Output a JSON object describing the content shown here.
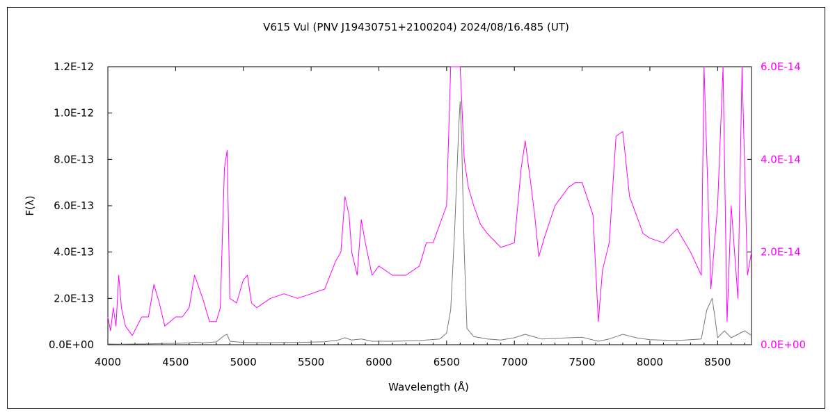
{
  "chart_data": {
    "type": "line",
    "title": "V615 Vul (PNV J19430751+2100204)   2024/08/16.485 (UT)",
    "xlabel": "Wavelength (Å)",
    "ylabel": "F(λ)",
    "xlim": [
      4000,
      8750
    ],
    "ylim_left": [
      0,
      1.2e-12
    ],
    "ylim_right": [
      0,
      6e-14
    ],
    "x_ticks": [
      4000,
      4500,
      5000,
      5500,
      6000,
      6500,
      7000,
      7500,
      8000,
      8500
    ],
    "x_tick_labels": [
      "4000",
      "4500",
      "5000",
      "5500",
      "6000",
      "6500",
      "7000",
      "7500",
      "8000",
      "8500"
    ],
    "y_left_ticks": [
      0,
      2e-13,
      4e-13,
      6e-13,
      8e-13,
      1e-12,
      1.2e-12
    ],
    "y_left_tick_labels": [
      "0.0E+00",
      "2.0E-13",
      "4.0E-13",
      "6.0E-13",
      "8.0E-13",
      "1.0E-12",
      "1.2E-12"
    ],
    "y_right_ticks": [
      0,
      2e-14,
      4e-14,
      6e-14
    ],
    "y_right_tick_labels": [
      "0.0E+00",
      "2.0E-14",
      "4.0E-14",
      "6.0E-14"
    ],
    "colors": {
      "left_series": "#777777",
      "right_series": "#ff00ff",
      "right_axis_labels": "#ff00ff"
    },
    "grid": false,
    "series": [
      {
        "axis": "left",
        "points": [
          [
            4000,
            3e-15
          ],
          [
            4100,
            2e-15
          ],
          [
            4200,
            3e-15
          ],
          [
            4300,
            4e-15
          ],
          [
            4400,
            5e-15
          ],
          [
            4500,
            6e-15
          ],
          [
            4600,
            8e-15
          ],
          [
            4640,
            1.1e-14
          ],
          [
            4700,
            8e-15
          ],
          [
            4800,
            1.2e-14
          ],
          [
            4860,
            4e-14
          ],
          [
            4880,
            4.5e-14
          ],
          [
            4900,
            1.5e-14
          ],
          [
            5000,
            1e-14
          ],
          [
            5100,
            9e-15
          ],
          [
            5200,
            9e-15
          ],
          [
            5300,
            1e-14
          ],
          [
            5400,
            1e-14
          ],
          [
            5500,
            1.1e-14
          ],
          [
            5600,
            1.3e-14
          ],
          [
            5700,
            2e-14
          ],
          [
            5750,
            3e-14
          ],
          [
            5800,
            2e-14
          ],
          [
            5870,
            2.5e-14
          ],
          [
            5950,
            1.5e-14
          ],
          [
            6100,
            1.5e-14
          ],
          [
            6300,
            1.8e-14
          ],
          [
            6450,
            2.5e-14
          ],
          [
            6500,
            5e-14
          ],
          [
            6530,
            1.5e-13
          ],
          [
            6560,
            5e-13
          ],
          [
            6590,
            9.5e-13
          ],
          [
            6600,
            1.05e-12
          ],
          [
            6610,
            9e-13
          ],
          [
            6630,
            4e-13
          ],
          [
            6650,
            7e-14
          ],
          [
            6700,
            3.5e-14
          ],
          [
            6800,
            2.5e-14
          ],
          [
            6900,
            2e-14
          ],
          [
            7000,
            3e-14
          ],
          [
            7080,
            4.5e-14
          ],
          [
            7200,
            2.5e-14
          ],
          [
            7400,
            3e-14
          ],
          [
            7500,
            3.2e-14
          ],
          [
            7620,
            1.5e-14
          ],
          [
            7700,
            2.5e-14
          ],
          [
            7800,
            4.5e-14
          ],
          [
            7900,
            3e-14
          ],
          [
            8000,
            2.2e-14
          ],
          [
            8200,
            1.8e-14
          ],
          [
            8380,
            2.5e-14
          ],
          [
            8420,
            1.5e-13
          ],
          [
            8460,
            2e-13
          ],
          [
            8480,
            1.2e-13
          ],
          [
            8500,
            3e-14
          ],
          [
            8550,
            6e-14
          ],
          [
            8600,
            3e-14
          ],
          [
            8700,
            6e-14
          ],
          [
            8750,
            4e-14
          ]
        ]
      },
      {
        "axis": "right",
        "points": [
          [
            4000,
            6e-15
          ],
          [
            4020,
            3e-15
          ],
          [
            4040,
            8e-15
          ],
          [
            4060,
            4e-15
          ],
          [
            4080,
            1.5e-14
          ],
          [
            4100,
            8e-15
          ],
          [
            4130,
            4e-15
          ],
          [
            4180,
            2e-15
          ],
          [
            4250,
            6e-15
          ],
          [
            4300,
            6e-15
          ],
          [
            4340,
            1.3e-14
          ],
          [
            4380,
            9e-15
          ],
          [
            4420,
            4e-15
          ],
          [
            4500,
            6e-15
          ],
          [
            4550,
            6e-15
          ],
          [
            4600,
            8e-15
          ],
          [
            4640,
            1.5e-14
          ],
          [
            4700,
            1e-14
          ],
          [
            4750,
            5e-15
          ],
          [
            4800,
            5e-15
          ],
          [
            4830,
            8e-15
          ],
          [
            4860,
            3.8e-14
          ],
          [
            4880,
            4.2e-14
          ],
          [
            4900,
            1e-14
          ],
          [
            4950,
            9e-15
          ],
          [
            5000,
            1.4e-14
          ],
          [
            5030,
            1.5e-14
          ],
          [
            5060,
            9e-15
          ],
          [
            5100,
            8e-15
          ],
          [
            5200,
            1e-14
          ],
          [
            5300,
            1.1e-14
          ],
          [
            5400,
            1e-14
          ],
          [
            5500,
            1.1e-14
          ],
          [
            5600,
            1.2e-14
          ],
          [
            5680,
            1.8e-14
          ],
          [
            5720,
            2e-14
          ],
          [
            5750,
            3.2e-14
          ],
          [
            5780,
            2.8e-14
          ],
          [
            5800,
            2e-14
          ],
          [
            5840,
            1.5e-14
          ],
          [
            5870,
            2.7e-14
          ],
          [
            5900,
            2.2e-14
          ],
          [
            5950,
            1.5e-14
          ],
          [
            6000,
            1.7e-14
          ],
          [
            6100,
            1.5e-14
          ],
          [
            6200,
            1.5e-14
          ],
          [
            6300,
            1.7e-14
          ],
          [
            6350,
            2.2e-14
          ],
          [
            6400,
            2.2e-14
          ],
          [
            6450,
            2.6e-14
          ],
          [
            6500,
            3e-14
          ],
          [
            6530,
            6e-14
          ],
          [
            6600,
            6e-14
          ],
          [
            6630,
            4e-14
          ],
          [
            6660,
            3.4e-14
          ],
          [
            6700,
            3e-14
          ],
          [
            6750,
            2.6e-14
          ],
          [
            6800,
            2.4e-14
          ],
          [
            6900,
            2.1e-14
          ],
          [
            7000,
            2.2e-14
          ],
          [
            7050,
            3.8e-14
          ],
          [
            7080,
            4.4e-14
          ],
          [
            7120,
            3.5e-14
          ],
          [
            7150,
            2.8e-14
          ],
          [
            7180,
            1.9e-14
          ],
          [
            7220,
            2.3e-14
          ],
          [
            7300,
            3e-14
          ],
          [
            7400,
            3.4e-14
          ],
          [
            7450,
            3.5e-14
          ],
          [
            7500,
            3.5e-14
          ],
          [
            7580,
            2.8e-14
          ],
          [
            7620,
            5e-15
          ],
          [
            7650,
            1.6e-14
          ],
          [
            7700,
            2.2e-14
          ],
          [
            7750,
            4.5e-14
          ],
          [
            7800,
            4.6e-14
          ],
          [
            7850,
            3.2e-14
          ],
          [
            7900,
            2.8e-14
          ],
          [
            7950,
            2.4e-14
          ],
          [
            8000,
            2.3e-14
          ],
          [
            8100,
            2.2e-14
          ],
          [
            8200,
            2.5e-14
          ],
          [
            8300,
            2e-14
          ],
          [
            8380,
            1.5e-14
          ],
          [
            8400,
            6e-14
          ],
          [
            8450,
            1.2e-14
          ],
          [
            8500,
            3e-14
          ],
          [
            8540,
            6e-14
          ],
          [
            8570,
            5e-15
          ],
          [
            8600,
            3e-14
          ],
          [
            8650,
            1e-14
          ],
          [
            8680,
            6e-14
          ],
          [
            8720,
            1.5e-14
          ],
          [
            8750,
            2e-14
          ]
        ]
      }
    ]
  }
}
